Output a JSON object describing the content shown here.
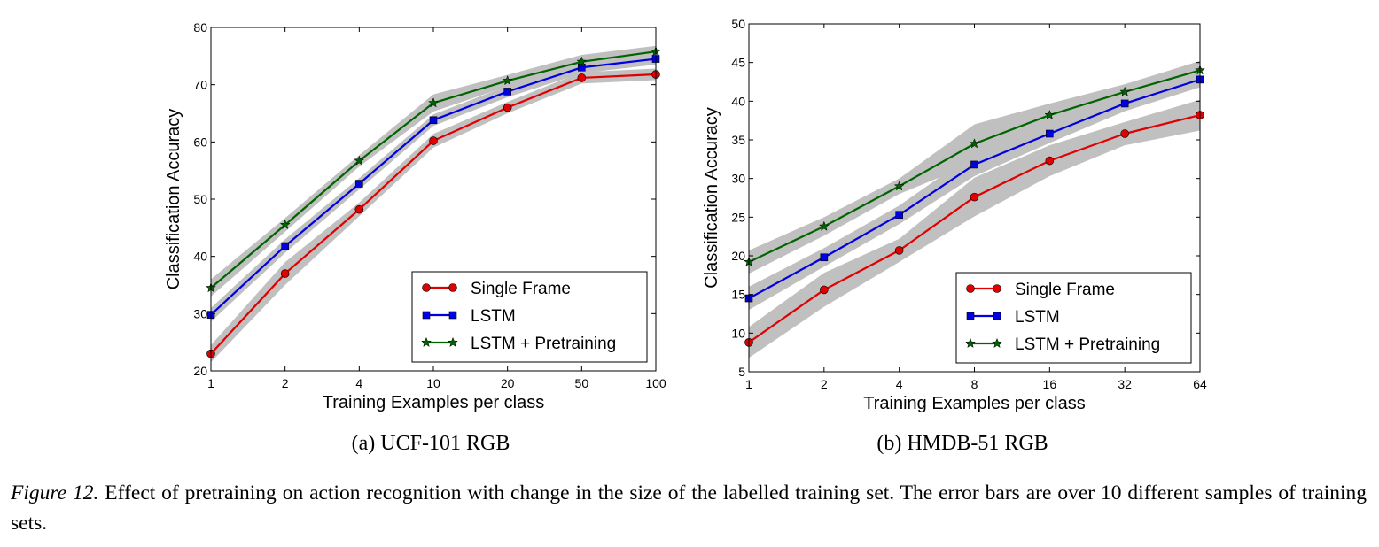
{
  "chart_data": [
    {
      "type": "line",
      "subcaption": "(a) UCF-101 RGB",
      "xlabel": "Training Examples per class",
      "ylabel": "Classification Accuracy",
      "x": [
        "1",
        "2",
        "4",
        "10",
        "20",
        "50",
        "100"
      ],
      "ylim": [
        20,
        80
      ],
      "yticks": [
        20,
        30,
        40,
        50,
        60,
        70,
        80
      ],
      "legend_position": "lower-right",
      "error_band_color": "#c0c0c0",
      "series": [
        {
          "name": "Single Frame",
          "color": "#e00000",
          "marker": "circle",
          "values": [
            23,
            37,
            48.2,
            60.2,
            66,
            71.2,
            71.8
          ],
          "error": [
            1.5,
            2,
            1.2,
            1.2,
            1,
            1,
            1
          ]
        },
        {
          "name": "LSTM",
          "color": "#0000e0",
          "marker": "square",
          "values": [
            29.8,
            41.8,
            52.7,
            63.8,
            68.8,
            73,
            74.5
          ],
          "error": [
            1.2,
            1.2,
            1,
            1,
            1,
            1,
            1
          ]
        },
        {
          "name": "LSTM + Pretraining",
          "color": "#006400",
          "marker": "star",
          "values": [
            34.5,
            45.5,
            56.7,
            66.8,
            70.7,
            74,
            75.8
          ],
          "error": [
            1.5,
            1.2,
            1,
            1.5,
            1,
            1.2,
            1
          ]
        }
      ]
    },
    {
      "type": "line",
      "subcaption": "(b) HMDB-51 RGB",
      "xlabel": "Training Examples per class",
      "ylabel": "Classification Accuracy",
      "x": [
        "1",
        "2",
        "4",
        "8",
        "16",
        "32",
        "64"
      ],
      "ylim": [
        5,
        50
      ],
      "yticks": [
        5,
        10,
        15,
        20,
        25,
        30,
        35,
        40,
        45,
        50
      ],
      "legend_position": "lower-right",
      "error_band_color": "#c0c0c0",
      "series": [
        {
          "name": "Single Frame",
          "color": "#e00000",
          "marker": "circle",
          "values": [
            8.8,
            15.6,
            20.7,
            27.6,
            32.3,
            35.8,
            38.2
          ],
          "error": [
            2,
            2.2,
            1.5,
            2.5,
            2,
            1.5,
            2
          ]
        },
        {
          "name": "LSTM",
          "color": "#0000e0",
          "marker": "square",
          "values": [
            14.5,
            19.8,
            25.3,
            31.8,
            35.8,
            39.7,
            42.8
          ],
          "error": [
            1.5,
            1.2,
            1.2,
            1.5,
            1.2,
            1,
            1
          ]
        },
        {
          "name": "LSTM + Pretraining",
          "color": "#006400",
          "marker": "star",
          "values": [
            19.2,
            23.8,
            29,
            34.5,
            38.2,
            41.2,
            44
          ],
          "error": [
            1.5,
            1.2,
            1,
            2.5,
            1.5,
            1,
            1.2
          ]
        }
      ]
    }
  ],
  "caption": {
    "figure_label": "Figure 12.",
    "text": " Effect of pretraining on action recognition with change in the size of the labelled training set.  The error bars are over 10 different samples of training sets."
  }
}
